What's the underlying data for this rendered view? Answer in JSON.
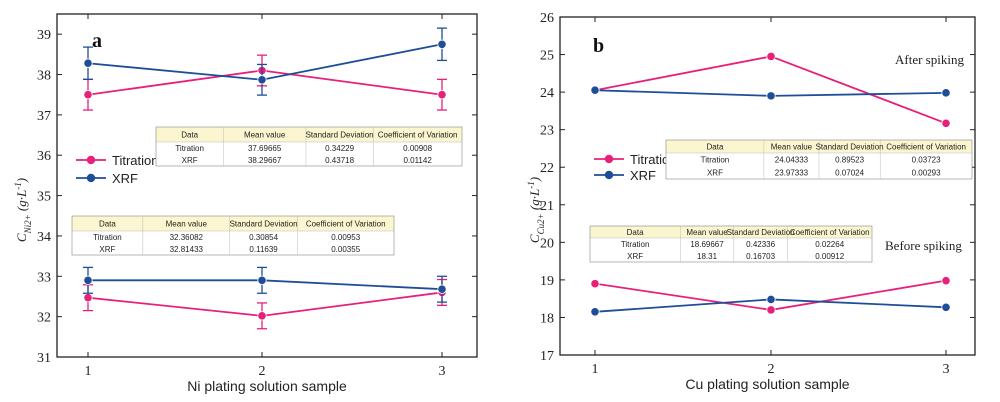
{
  "colors": {
    "titration": "#e8207a",
    "xrf": "#1f4e99"
  },
  "chart_data": [
    {
      "type": "line",
      "panel_label": "a",
      "xlabel": "Ni plating solution sample",
      "ylabel_main": "C",
      "ylabel_sub": "Ni2+",
      "ylabel_unit": " (g·L",
      "ylabel_exp": "-1",
      "ylabel_close": ")",
      "categories": [
        "1",
        "2",
        "3"
      ],
      "ylim": [
        31,
        39.5
      ],
      "yticks": [
        "31",
        "32",
        "33",
        "34",
        "35",
        "36",
        "37",
        "38",
        "39"
      ],
      "series": [
        {
          "name": "Titration",
          "group": "upper",
          "values": [
            37.5,
            38.1,
            37.5
          ],
          "errors": [
            0.38,
            0.38,
            0.38
          ]
        },
        {
          "name": "XRF",
          "group": "upper",
          "values": [
            38.28,
            37.87,
            38.75
          ],
          "errors": [
            0.4,
            0.38,
            0.4
          ]
        },
        {
          "name": "Titration",
          "group": "lower",
          "values": [
            32.47,
            32.02,
            32.6
          ],
          "errors": [
            0.32,
            0.32,
            0.32
          ]
        },
        {
          "name": "XRF",
          "group": "lower",
          "values": [
            32.9,
            32.9,
            32.68
          ],
          "errors": [
            0.32,
            0.32,
            0.32
          ]
        }
      ],
      "legend": [
        {
          "name": "Titration",
          "color_key": "titration"
        },
        {
          "name": "XRF",
          "color_key": "xrf"
        }
      ],
      "tables": [
        {
          "header": [
            "Data",
            "Mean value",
            "Standard Deviation",
            "Coefficient of Variation"
          ],
          "rows": [
            [
              "Titration",
              "37.69665",
              "0.34229",
              "0.00908"
            ],
            [
              "XRF",
              "38.29667",
              "0.43718",
              "0.01142"
            ]
          ]
        },
        {
          "header": [
            "Data",
            "Mean value",
            "Standard Deviation",
            "Coefficient of Variation"
          ],
          "rows": [
            [
              "Titration",
              "32.36082",
              "0.30854",
              "0.00953"
            ],
            [
              "XRF",
              "32.81433",
              "0.11639",
              "0.00355"
            ]
          ]
        }
      ]
    },
    {
      "type": "line",
      "panel_label": "b",
      "xlabel": "Cu plating solution sample",
      "ylabel_main": "C",
      "ylabel_sub": "Cu2+",
      "ylabel_unit": " (g·L",
      "ylabel_exp": "-1",
      "ylabel_close": ")",
      "categories": [
        "1",
        "2",
        "3"
      ],
      "ylim": [
        17,
        26
      ],
      "yticks": [
        "17",
        "18",
        "19",
        "20",
        "21",
        "22",
        "23",
        "24",
        "25",
        "26"
      ],
      "annotations": [
        "After spiking",
        "Before spiking"
      ],
      "series": [
        {
          "name": "Titration",
          "group": "upper",
          "values": [
            24.05,
            24.95,
            23.17
          ]
        },
        {
          "name": "XRF",
          "group": "upper",
          "values": [
            24.05,
            23.9,
            23.98
          ]
        },
        {
          "name": "Titration",
          "group": "lower",
          "values": [
            18.9,
            18.2,
            18.98
          ]
        },
        {
          "name": "XRF",
          "group": "lower",
          "values": [
            18.15,
            18.48,
            18.27
          ]
        }
      ],
      "legend": [
        {
          "name": "Titration",
          "color_key": "titration"
        },
        {
          "name": "XRF",
          "color_key": "xrf"
        }
      ],
      "tables": [
        {
          "header": [
            "Data",
            "Mean value",
            "Standard Deviation",
            "Coefficient of Variation"
          ],
          "rows": [
            [
              "Titration",
              "24.04333",
              "0.89523",
              "0.03723"
            ],
            [
              "XRF",
              "23.97333",
              "0.07024",
              "0.00293"
            ]
          ]
        },
        {
          "header": [
            "Data",
            "Mean value",
            "Standard Deviation",
            "Coefficient of Variation"
          ],
          "rows": [
            [
              "Titration",
              "18.69667",
              "0.42336",
              "0.02264"
            ],
            [
              "XRF",
              "18.31",
              "0.16703",
              "0.00912"
            ]
          ]
        }
      ]
    }
  ]
}
